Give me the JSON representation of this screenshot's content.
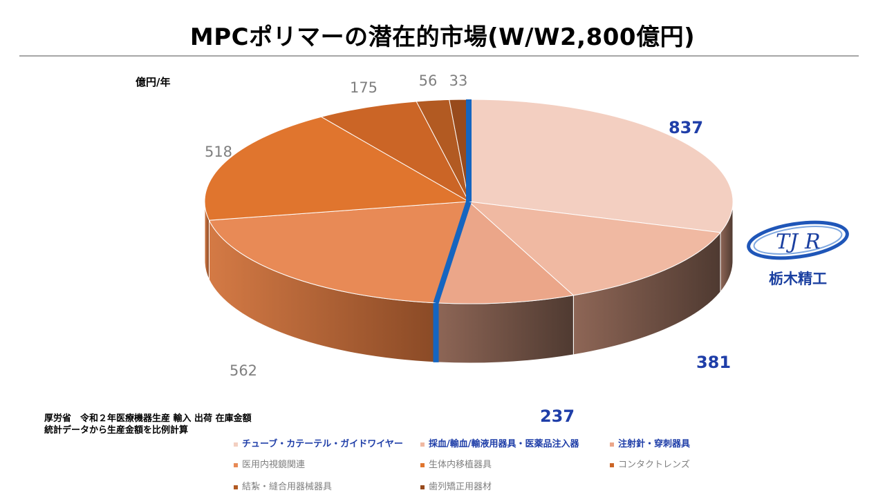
{
  "title": "MPCポリマーの潜在的市場(W/W2,800億円)",
  "unit_label": "億円/年",
  "source_note": [
    "厚労省　令和２年医療機器生産 輸入 出荷 在庫金額",
    "統計データから生産金額を比例計算"
  ],
  "logo": {
    "text": "栃木精工"
  },
  "chart_data": {
    "type": "pie",
    "style": "3d",
    "title": "MPCポリマーの潜在的市場(W/W2,800億円)",
    "unit": "億円/年",
    "total": 2800,
    "categories": [
      "チューブ・カテーテル・ガイドワイヤー",
      "採血/輸血/輸液用器具・医薬品注入器",
      "注射針・穿刺器具",
      "医用内視鏡関連",
      "生体内移植器具",
      "コンタクトレンズ",
      "結紮・縫合用器械器具",
      "歯列矯正用器材"
    ],
    "values": [
      837,
      381,
      237,
      562,
      518,
      175,
      56,
      33
    ],
    "colors": [
      "#f3cfc1",
      "#f0b9a2",
      "#eba689",
      "#e88a56",
      "#e0752e",
      "#cb6526",
      "#b25a22",
      "#984a1c"
    ],
    "side_colors": [
      "#5e4137",
      "#5e4137",
      "#6e4a3c",
      "#b4622f",
      "#b4622f",
      "#a04f1c",
      "#8e461a",
      "#7a3a15"
    ],
    "highlighted": [
      0,
      1,
      2
    ],
    "label_colors": {
      "normal": "#7f7f7f",
      "highlight": "#1f3ea8"
    },
    "divider_color": "#1565c0",
    "legend_position": "bottom"
  }
}
